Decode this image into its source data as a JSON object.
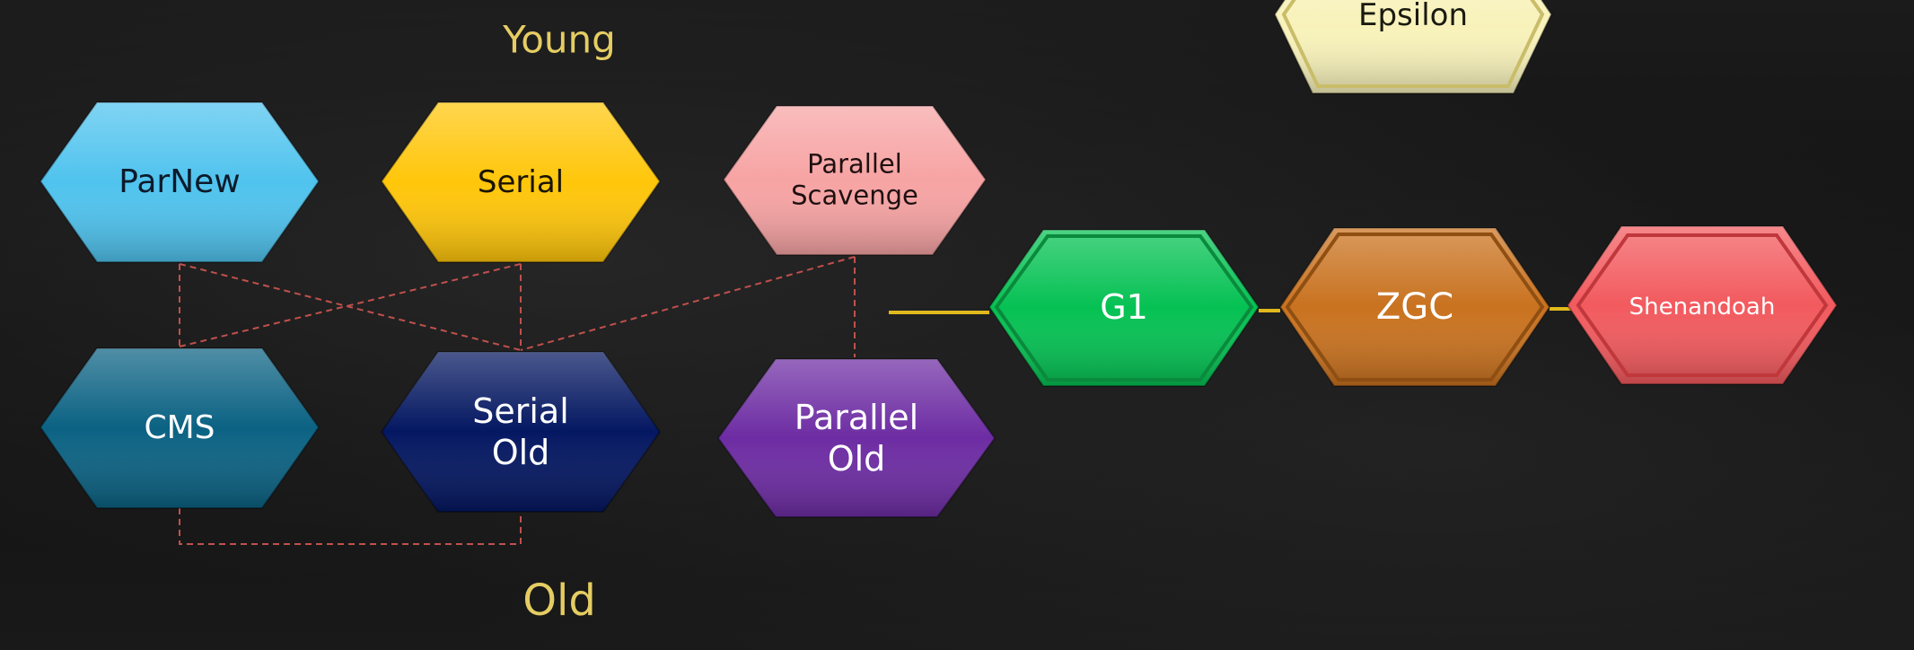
{
  "regions": {
    "young": "Young",
    "old": "Old"
  },
  "collectors": {
    "parnew": {
      "lines": [
        "ParNew"
      ],
      "color": "#4fc3ee",
      "text_color": "#0d1a2a"
    },
    "serial": {
      "lines": [
        "Serial"
      ],
      "color": "#ffc60a",
      "text_color": "#1a1400"
    },
    "parallel_scavenge": {
      "lines": [
        "Parallel",
        "Scavenge"
      ],
      "color": "#f7a3a3",
      "text_color": "#1e1010"
    },
    "cms": {
      "lines": [
        "CMS"
      ],
      "color": "#0b6283",
      "text_color": "#ffffff"
    },
    "serial_old": {
      "lines": [
        "Serial",
        "Old"
      ],
      "color": "#041761",
      "text_color": "#ffffff"
    },
    "parallel_old": {
      "lines": [
        "Parallel",
        "Old"
      ],
      "color": "#6d2ca3",
      "text_color": "#ffffff"
    },
    "g1": {
      "lines": [
        "G1"
      ],
      "color": "#05c153",
      "text_color": "#ffffff"
    },
    "zgc": {
      "lines": [
        "ZGC"
      ],
      "color": "#c9721f",
      "text_color": "#ffffff"
    },
    "shenandoah": {
      "lines": [
        "Shenandoah"
      ],
      "color": "#f25a5e",
      "text_color": "#ffffff"
    },
    "epsilon": {
      "lines": [
        "Epsilon"
      ],
      "color": "#f8f2ba",
      "text_color": "#1a1a10"
    }
  },
  "connections": [
    {
      "from": "parnew",
      "to": "cms",
      "style": "dashed"
    },
    {
      "from": "parnew",
      "to": "serial_old",
      "style": "dashed"
    },
    {
      "from": "serial",
      "to": "cms",
      "style": "dashed"
    },
    {
      "from": "serial",
      "to": "serial_old",
      "style": "dashed"
    },
    {
      "from": "parallel_scavenge",
      "to": "serial_old",
      "style": "dashed"
    },
    {
      "from": "parallel_scavenge",
      "to": "parallel_old",
      "style": "dashed"
    },
    {
      "from": "cms",
      "to": "serial_old",
      "style": "dashed"
    },
    {
      "from": "g1",
      "to": "zgc",
      "style": "solid"
    },
    {
      "from": "zgc",
      "to": "shenandoah",
      "style": "solid"
    }
  ],
  "colors": {
    "region_label": "#e5cd63",
    "dashed_connector": "#c0504d",
    "solid_connector": "#e1b91c",
    "background": "#121212"
  }
}
